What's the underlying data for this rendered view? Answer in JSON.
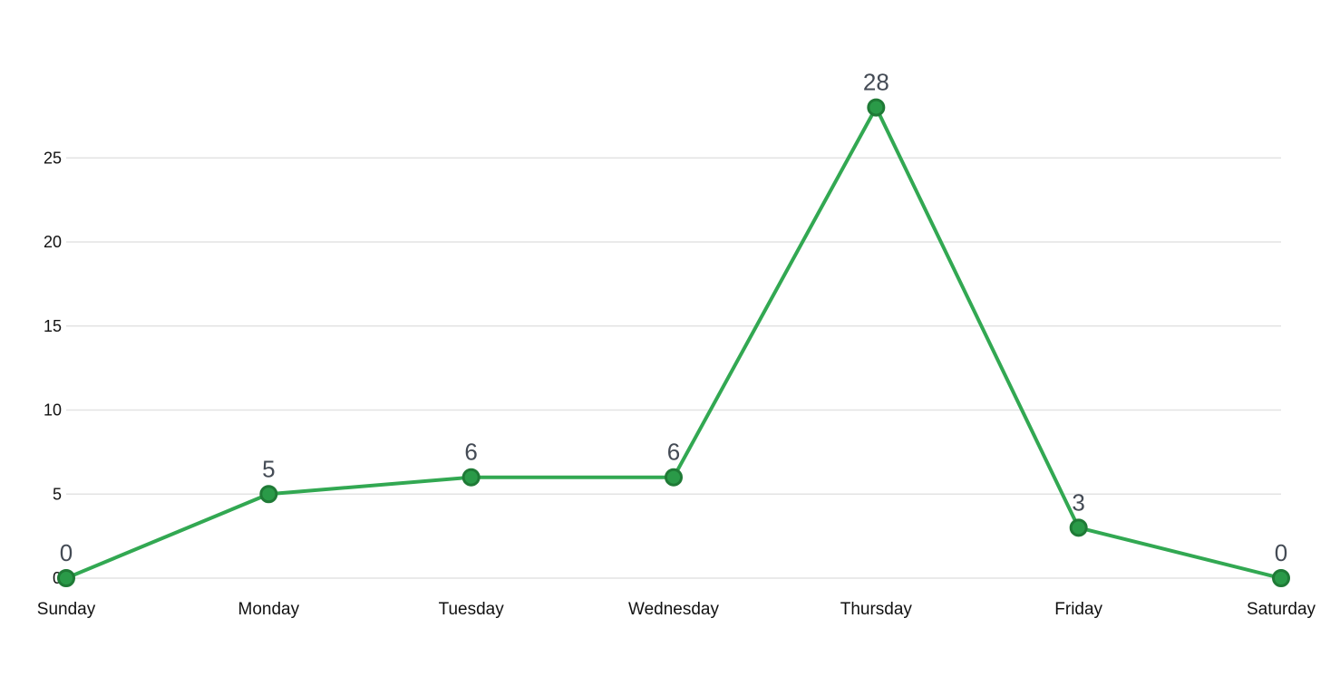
{
  "chart_data": {
    "type": "line",
    "categories": [
      "Sunday",
      "Monday",
      "Tuesday",
      "Wednesday",
      "Thursday",
      "Friday",
      "Saturday"
    ],
    "series": [
      {
        "values": [
          0,
          5,
          6,
          6,
          28,
          3,
          0
        ],
        "color": "#32a852",
        "point_color": "#2a9a48",
        "point_stroke": "#1f7a36"
      }
    ],
    "yticks": [
      0,
      5,
      10,
      15,
      20,
      25
    ],
    "ylim": [
      0,
      28
    ],
    "grid": true,
    "data_labels": true,
    "title": "",
    "xlabel": "",
    "ylabel": ""
  }
}
